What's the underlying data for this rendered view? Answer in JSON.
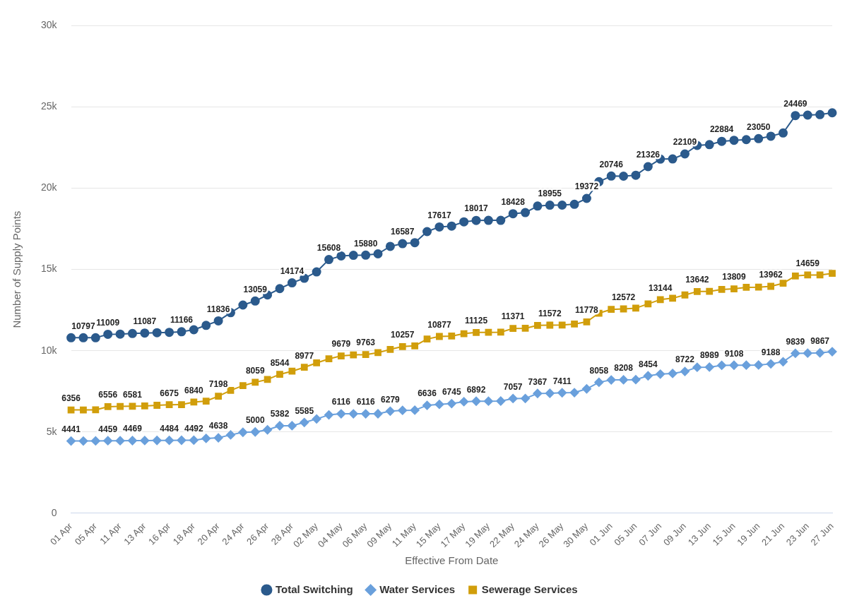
{
  "chart_data": {
    "type": "line",
    "xlabel": "Effective From Date",
    "ylabel": "Number of Supply Points",
    "ylim": [
      0,
      30000
    ],
    "yticks": [
      0,
      {
        "value": 5000,
        "label": "5k"
      },
      {
        "value": 10000,
        "label": "10k"
      },
      {
        "value": 15000,
        "label": "15k"
      },
      {
        "value": 20000,
        "label": "20k"
      },
      {
        "value": 25000,
        "label": "25k"
      },
      {
        "value": 30000,
        "label": "30k"
      }
    ],
    "grid": "y",
    "legend": "bottom",
    "categories": [
      "01 Apr",
      null,
      "05 Apr",
      null,
      "11 Apr",
      null,
      "13 Apr",
      null,
      "16 Apr",
      null,
      "18 Apr",
      null,
      "20 Apr",
      null,
      "24 Apr",
      null,
      "26 Apr",
      null,
      "28 Apr",
      null,
      "02 May",
      null,
      "04 May",
      null,
      "06 May",
      null,
      "09 May",
      null,
      "11 May",
      null,
      "15 May",
      null,
      "17 May",
      null,
      "19 May",
      null,
      "22 May",
      null,
      "24 May",
      null,
      "26 May",
      null,
      "30 May",
      null,
      "01 Jun",
      null,
      "05 Jun",
      null,
      "07 Jun",
      null,
      "09 Jun",
      null,
      "13 Jun",
      null,
      "15 Jun",
      null,
      "19 Jun",
      null,
      "21 Jun",
      null,
      "23 Jun",
      null,
      "27 Jun"
    ],
    "series": [
      {
        "name": "Total Switching",
        "color": "#2b5a8c",
        "marker": "circle",
        "values": [
          10797,
          10797,
          10797,
          11009,
          11020,
          11060,
          11087,
          11110,
          11130,
          11166,
          11290,
          11560,
          11836,
          12340,
          12810,
          13059,
          13430,
          13820,
          14174,
          14460,
          14850,
          15608,
          15830,
          15870,
          15880,
          15960,
          16420,
          16587,
          16650,
          17330,
          17617,
          17670,
          17930,
          18017,
          18020,
          18020,
          18428,
          18500,
          18900,
          18955,
          18960,
          19010,
          19372,
          20400,
          20746,
          20740,
          20800,
          21326,
          21790,
          21800,
          22109,
          22630,
          22680,
          22884,
          22950,
          22990,
          23050,
          23200,
          23400,
          24469,
          24500,
          24530,
          24640
        ],
        "value_labels": [
          null,
          "10797",
          null,
          "11009",
          null,
          null,
          "11087",
          null,
          null,
          "11166",
          null,
          null,
          "11836",
          null,
          null,
          "13059",
          null,
          null,
          "14174",
          null,
          null,
          "15608",
          null,
          null,
          "15880",
          null,
          null,
          "16587",
          null,
          null,
          "17617",
          null,
          null,
          "18017",
          null,
          null,
          "18428",
          null,
          null,
          "18955",
          null,
          null,
          "19372",
          null,
          "20746",
          null,
          null,
          "21326",
          null,
          null,
          "22109",
          null,
          null,
          "22884",
          null,
          null,
          "23050",
          null,
          null,
          "24469",
          null,
          null,
          null
        ]
      },
      {
        "name": "Water Services",
        "color": "#6aa0dc",
        "marker": "diamond",
        "values": [
          4441,
          4441,
          4450,
          4459,
          4460,
          4469,
          4470,
          4480,
          4484,
          4488,
          4492,
          4600,
          4638,
          4820,
          4980,
          5000,
          5130,
          5382,
          5385,
          5585,
          5800,
          6050,
          6116,
          6116,
          6116,
          6120,
          6279,
          6330,
          6340,
          6636,
          6700,
          6745,
          6860,
          6892,
          6895,
          6900,
          7057,
          7060,
          7367,
          7380,
          7411,
          7420,
          7650,
          8058,
          8200,
          8208,
          8220,
          8454,
          8560,
          8600,
          8722,
          8980,
          8989,
          9100,
          9108,
          9110,
          9120,
          9188,
          9320,
          9839,
          9850,
          9867,
          9940
        ],
        "value_labels": [
          "4441",
          null,
          null,
          "4459",
          null,
          "4469",
          null,
          null,
          "4484",
          null,
          "4492",
          null,
          "4638",
          null,
          null,
          "5000",
          null,
          "5382",
          null,
          "5585",
          null,
          null,
          "6116",
          null,
          "6116",
          null,
          "6279",
          null,
          null,
          "6636",
          null,
          "6745",
          null,
          "6892",
          null,
          null,
          "7057",
          null,
          "7367",
          null,
          "7411",
          null,
          null,
          "8058",
          null,
          "8208",
          null,
          "8454",
          null,
          null,
          "8722",
          null,
          "8989",
          null,
          "9108",
          null,
          null,
          "9188",
          null,
          "9839",
          null,
          "9867",
          null
        ]
      },
      {
        "name": "Sewerage Services",
        "color": "#d19e0b",
        "marker": "square",
        "values": [
          6356,
          6356,
          6360,
          6556,
          6570,
          6581,
          6600,
          6640,
          6675,
          6680,
          6840,
          6900,
          7198,
          7560,
          7850,
          8059,
          8230,
          8544,
          8740,
          8977,
          9250,
          9500,
          9679,
          9740,
          9763,
          9880,
          10080,
          10257,
          10300,
          10720,
          10877,
          10900,
          11050,
          11125,
          11130,
          11140,
          11371,
          11380,
          11560,
          11572,
          11580,
          11640,
          11778,
          12310,
          12540,
          12572,
          12620,
          12880,
          13144,
          13230,
          13430,
          13642,
          13650,
          13770,
          13809,
          13900,
          13910,
          13962,
          14150,
          14600,
          14659,
          14660,
          14760
        ],
        "value_labels": [
          "6356",
          null,
          null,
          "6556",
          null,
          "6581",
          null,
          null,
          "6675",
          null,
          "6840",
          null,
          "7198",
          null,
          null,
          "8059",
          null,
          "8544",
          null,
          "8977",
          null,
          null,
          "9679",
          null,
          "9763",
          null,
          null,
          "10257",
          null,
          null,
          "10877",
          null,
          null,
          "11125",
          null,
          null,
          "11371",
          null,
          null,
          "11572",
          null,
          null,
          "11778",
          null,
          null,
          "12572",
          null,
          null,
          "13144",
          null,
          null,
          "13642",
          null,
          null,
          "13809",
          null,
          null,
          "13962",
          null,
          null,
          "14659",
          null,
          null
        ]
      }
    ]
  }
}
